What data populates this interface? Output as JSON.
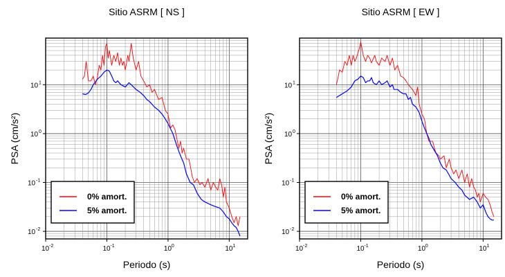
{
  "chart_data": [
    {
      "type": "line",
      "title": "Sitio ASRM [ NS ]",
      "xlabel": "Periodo (s)",
      "ylabel": "PSA (cm/s²)",
      "xscale": "log",
      "yscale": "log",
      "xlim": [
        0.01,
        20
      ],
      "ylim": [
        0.007,
        90
      ],
      "grid": true,
      "legend_position": "bottom-left",
      "x_ticks": [
        {
          "base": "10",
          "exp": "-2",
          "value": 0.01
        },
        {
          "base": "10",
          "exp": "-1",
          "value": 0.1
        },
        {
          "base": "10",
          "exp": "0",
          "value": 1
        },
        {
          "base": "10",
          "exp": "1",
          "value": 10
        }
      ],
      "y_ticks": [
        {
          "base": "10",
          "exp": "-2",
          "value": 0.01
        },
        {
          "base": "10",
          "exp": "-1",
          "value": 0.1
        },
        {
          "base": "10",
          "exp": "0",
          "value": 1
        },
        {
          "base": "10",
          "exp": "1",
          "value": 10
        }
      ],
      "series": [
        {
          "name": "0% amort.",
          "color": "#ff0000",
          "points": [
            [
              0.04,
              13
            ],
            [
              0.043,
              15
            ],
            [
              0.046,
              30
            ],
            [
              0.05,
              12
            ],
            [
              0.055,
              12
            ],
            [
              0.06,
              15
            ],
            [
              0.065,
              10
            ],
            [
              0.07,
              14
            ],
            [
              0.075,
              25
            ],
            [
              0.08,
              20
            ],
            [
              0.085,
              40
            ],
            [
              0.09,
              25
            ],
            [
              0.095,
              60
            ],
            [
              0.1,
              70
            ],
            [
              0.105,
              35
            ],
            [
              0.11,
              50
            ],
            [
              0.12,
              25
            ],
            [
              0.13,
              40
            ],
            [
              0.14,
              30
            ],
            [
              0.15,
              45
            ],
            [
              0.16,
              25
            ],
            [
              0.17,
              35
            ],
            [
              0.18,
              25
            ],
            [
              0.19,
              30
            ],
            [
              0.2,
              20
            ],
            [
              0.21,
              28
            ],
            [
              0.22,
              40
            ],
            [
              0.23,
              30
            ],
            [
              0.25,
              70
            ],
            [
              0.27,
              35
            ],
            [
              0.3,
              20
            ],
            [
              0.33,
              30
            ],
            [
              0.36,
              15
            ],
            [
              0.4,
              12
            ],
            [
              0.45,
              9
            ],
            [
              0.5,
              10
            ],
            [
              0.55,
              7
            ],
            [
              0.6,
              8
            ],
            [
              0.7,
              5
            ],
            [
              0.8,
              5.5
            ],
            [
              0.9,
              3
            ],
            [
              1.0,
              2.5
            ],
            [
              1.1,
              1.3
            ],
            [
              1.2,
              1.5
            ],
            [
              1.3,
              1.2
            ],
            [
              1.5,
              0.5
            ],
            [
              1.6,
              0.7
            ],
            [
              1.7,
              0.4
            ],
            [
              1.8,
              0.5
            ],
            [
              2.0,
              0.3
            ],
            [
              2.2,
              0.3
            ],
            [
              2.5,
              0.13
            ],
            [
              2.7,
              0.1
            ],
            [
              3.0,
              0.12
            ],
            [
              3.3,
              0.09
            ],
            [
              3.6,
              0.1
            ],
            [
              4.0,
              0.08
            ],
            [
              4.5,
              0.12
            ],
            [
              5.0,
              0.07
            ],
            [
              5.5,
              0.1
            ],
            [
              6.0,
              0.08
            ],
            [
              6.5,
              0.07
            ],
            [
              7.0,
              0.12
            ],
            [
              7.5,
              0.09
            ],
            [
              8.0,
              0.05
            ],
            [
              8.5,
              0.08
            ],
            [
              9.0,
              0.04
            ],
            [
              10,
              0.03
            ],
            [
              11,
              0.02
            ],
            [
              12,
              0.015
            ],
            [
              13,
              0.02
            ],
            [
              14,
              0.013
            ],
            [
              15,
              0.02
            ]
          ]
        },
        {
          "name": "5% amort.",
          "color": "#0000ff",
          "points": [
            [
              0.04,
              6.5
            ],
            [
              0.045,
              6.3
            ],
            [
              0.05,
              6.8
            ],
            [
              0.055,
              8
            ],
            [
              0.06,
              10
            ],
            [
              0.07,
              13
            ],
            [
              0.08,
              15
            ],
            [
              0.09,
              18
            ],
            [
              0.1,
              20
            ],
            [
              0.11,
              19
            ],
            [
              0.12,
              15
            ],
            [
              0.13,
              12
            ],
            [
              0.14,
              11
            ],
            [
              0.15,
              12
            ],
            [
              0.17,
              10
            ],
            [
              0.2,
              9
            ],
            [
              0.23,
              11
            ],
            [
              0.25,
              10
            ],
            [
              0.3,
              8
            ],
            [
              0.35,
              7
            ],
            [
              0.4,
              6
            ],
            [
              0.45,
              5
            ],
            [
              0.5,
              4.5
            ],
            [
              0.6,
              3.5
            ],
            [
              0.7,
              3
            ],
            [
              0.8,
              2.5
            ],
            [
              0.9,
              2.0
            ],
            [
              1.0,
              1.6
            ],
            [
              1.2,
              1.0
            ],
            [
              1.4,
              0.55
            ],
            [
              1.6,
              0.35
            ],
            [
              1.8,
              0.25
            ],
            [
              2.0,
              0.15
            ],
            [
              2.3,
              0.1
            ],
            [
              2.6,
              0.09
            ],
            [
              3.0,
              0.06
            ],
            [
              3.5,
              0.045
            ],
            [
              4.0,
              0.04
            ],
            [
              5.0,
              0.035
            ],
            [
              6.0,
              0.032
            ],
            [
              7.0,
              0.03
            ],
            [
              8.0,
              0.025
            ],
            [
              9.0,
              0.02
            ],
            [
              10,
              0.018
            ],
            [
              11,
              0.015
            ],
            [
              12,
              0.013
            ],
            [
              13,
              0.012
            ],
            [
              14,
              0.01
            ],
            [
              15,
              0.008
            ]
          ]
        }
      ]
    },
    {
      "type": "line",
      "title": "Sitio ASRM [ EW ]",
      "xlabel": "Periodo (s)",
      "ylabel": "PSA (cm/s²)",
      "xscale": "log",
      "yscale": "log",
      "xlim": [
        0.01,
        20
      ],
      "ylim": [
        0.007,
        90
      ],
      "grid": true,
      "legend_position": "bottom-left",
      "x_ticks": [
        {
          "base": "10",
          "exp": "-2",
          "value": 0.01
        },
        {
          "base": "10",
          "exp": "-1",
          "value": 0.1
        },
        {
          "base": "10",
          "exp": "0",
          "value": 1
        },
        {
          "base": "10",
          "exp": "1",
          "value": 10
        }
      ],
      "y_ticks": [
        {
          "base": "10",
          "exp": "-2",
          "value": 0.01
        },
        {
          "base": "10",
          "exp": "-1",
          "value": 0.1
        },
        {
          "base": "10",
          "exp": "0",
          "value": 1
        },
        {
          "base": "10",
          "exp": "1",
          "value": 10
        }
      ],
      "series": [
        {
          "name": "0% amort.",
          "color": "#ff0000",
          "points": [
            [
              0.04,
              10
            ],
            [
              0.042,
              13
            ],
            [
              0.045,
              20
            ],
            [
              0.05,
              18
            ],
            [
              0.055,
              30
            ],
            [
              0.06,
              25
            ],
            [
              0.065,
              40
            ],
            [
              0.07,
              25
            ],
            [
              0.075,
              40
            ],
            [
              0.08,
              30
            ],
            [
              0.085,
              35
            ],
            [
              0.09,
              45
            ],
            [
              0.095,
              55
            ],
            [
              0.1,
              75
            ],
            [
              0.11,
              40
            ],
            [
              0.12,
              30
            ],
            [
              0.13,
              40
            ],
            [
              0.14,
              35
            ],
            [
              0.15,
              28
            ],
            [
              0.17,
              40
            ],
            [
              0.18,
              30
            ],
            [
              0.2,
              25
            ],
            [
              0.22,
              35
            ],
            [
              0.25,
              30
            ],
            [
              0.27,
              40
            ],
            [
              0.3,
              25
            ],
            [
              0.33,
              35
            ],
            [
              0.36,
              20
            ],
            [
              0.4,
              25
            ],
            [
              0.45,
              15
            ],
            [
              0.5,
              14
            ],
            [
              0.55,
              12
            ],
            [
              0.6,
              10
            ],
            [
              0.7,
              8
            ],
            [
              0.8,
              6
            ],
            [
              0.85,
              9
            ],
            [
              0.9,
              4
            ],
            [
              1.0,
              2.5
            ],
            [
              1.1,
              2.0
            ],
            [
              1.2,
              1.0
            ],
            [
              1.3,
              0.7
            ],
            [
              1.5,
              0.7
            ],
            [
              1.6,
              0.5
            ],
            [
              1.7,
              0.4
            ],
            [
              1.9,
              0.35
            ],
            [
              2.0,
              0.3
            ],
            [
              2.3,
              0.35
            ],
            [
              2.5,
              0.2
            ],
            [
              2.8,
              0.3
            ],
            [
              3.0,
              0.2
            ],
            [
              3.3,
              0.15
            ],
            [
              3.6,
              0.18
            ],
            [
              4.0,
              0.12
            ],
            [
              4.5,
              0.18
            ],
            [
              5.0,
              0.1
            ],
            [
              5.5,
              0.15
            ],
            [
              6.0,
              0.08
            ],
            [
              6.5,
              0.12
            ],
            [
              7.0,
              0.08
            ],
            [
              7.5,
              0.07
            ],
            [
              8.0,
              0.05
            ],
            [
              8.5,
              0.06
            ],
            [
              9.0,
              0.04
            ],
            [
              10,
              0.06
            ],
            [
              11,
              0.05
            ],
            [
              12,
              0.045
            ],
            [
              13,
              0.035
            ],
            [
              14,
              0.025
            ],
            [
              15,
              0.02
            ]
          ]
        },
        {
          "name": "5% amort.",
          "color": "#0000ff",
          "points": [
            [
              0.04,
              5.5
            ],
            [
              0.05,
              6.5
            ],
            [
              0.06,
              7.5
            ],
            [
              0.07,
              9
            ],
            [
              0.08,
              12
            ],
            [
              0.09,
              13
            ],
            [
              0.1,
              15
            ],
            [
              0.11,
              14
            ],
            [
              0.12,
              11
            ],
            [
              0.13,
              12
            ],
            [
              0.14,
              12
            ],
            [
              0.15,
              14
            ],
            [
              0.16,
              11
            ],
            [
              0.18,
              10
            ],
            [
              0.2,
              12
            ],
            [
              0.22,
              10
            ],
            [
              0.25,
              11
            ],
            [
              0.27,
              12
            ],
            [
              0.3,
              9
            ],
            [
              0.33,
              10
            ],
            [
              0.35,
              8
            ],
            [
              0.4,
              8
            ],
            [
              0.45,
              7
            ],
            [
              0.5,
              6.5
            ],
            [
              0.55,
              6.5
            ],
            [
              0.6,
              5
            ],
            [
              0.65,
              5.5
            ],
            [
              0.7,
              4
            ],
            [
              0.8,
              3.5
            ],
            [
              0.9,
              2.7
            ],
            [
              1.0,
              1.8
            ],
            [
              1.1,
              1.3
            ],
            [
              1.2,
              1.0
            ],
            [
              1.3,
              0.8
            ],
            [
              1.4,
              0.6
            ],
            [
              1.6,
              0.45
            ],
            [
              1.8,
              0.35
            ],
            [
              2.0,
              0.25
            ],
            [
              2.2,
              0.2
            ],
            [
              2.5,
              0.18
            ],
            [
              2.8,
              0.14
            ],
            [
              3.0,
              0.12
            ],
            [
              3.5,
              0.1
            ],
            [
              4.0,
              0.08
            ],
            [
              4.5,
              0.07
            ],
            [
              5.0,
              0.055
            ],
            [
              6.0,
              0.045
            ],
            [
              7.0,
              0.05
            ],
            [
              8.0,
              0.04
            ],
            [
              9.0,
              0.03
            ],
            [
              10,
              0.035
            ],
            [
              11,
              0.025
            ],
            [
              12,
              0.02
            ],
            [
              13,
              0.018
            ],
            [
              14,
              0.017
            ],
            [
              15,
              0.017
            ]
          ]
        }
      ]
    }
  ]
}
